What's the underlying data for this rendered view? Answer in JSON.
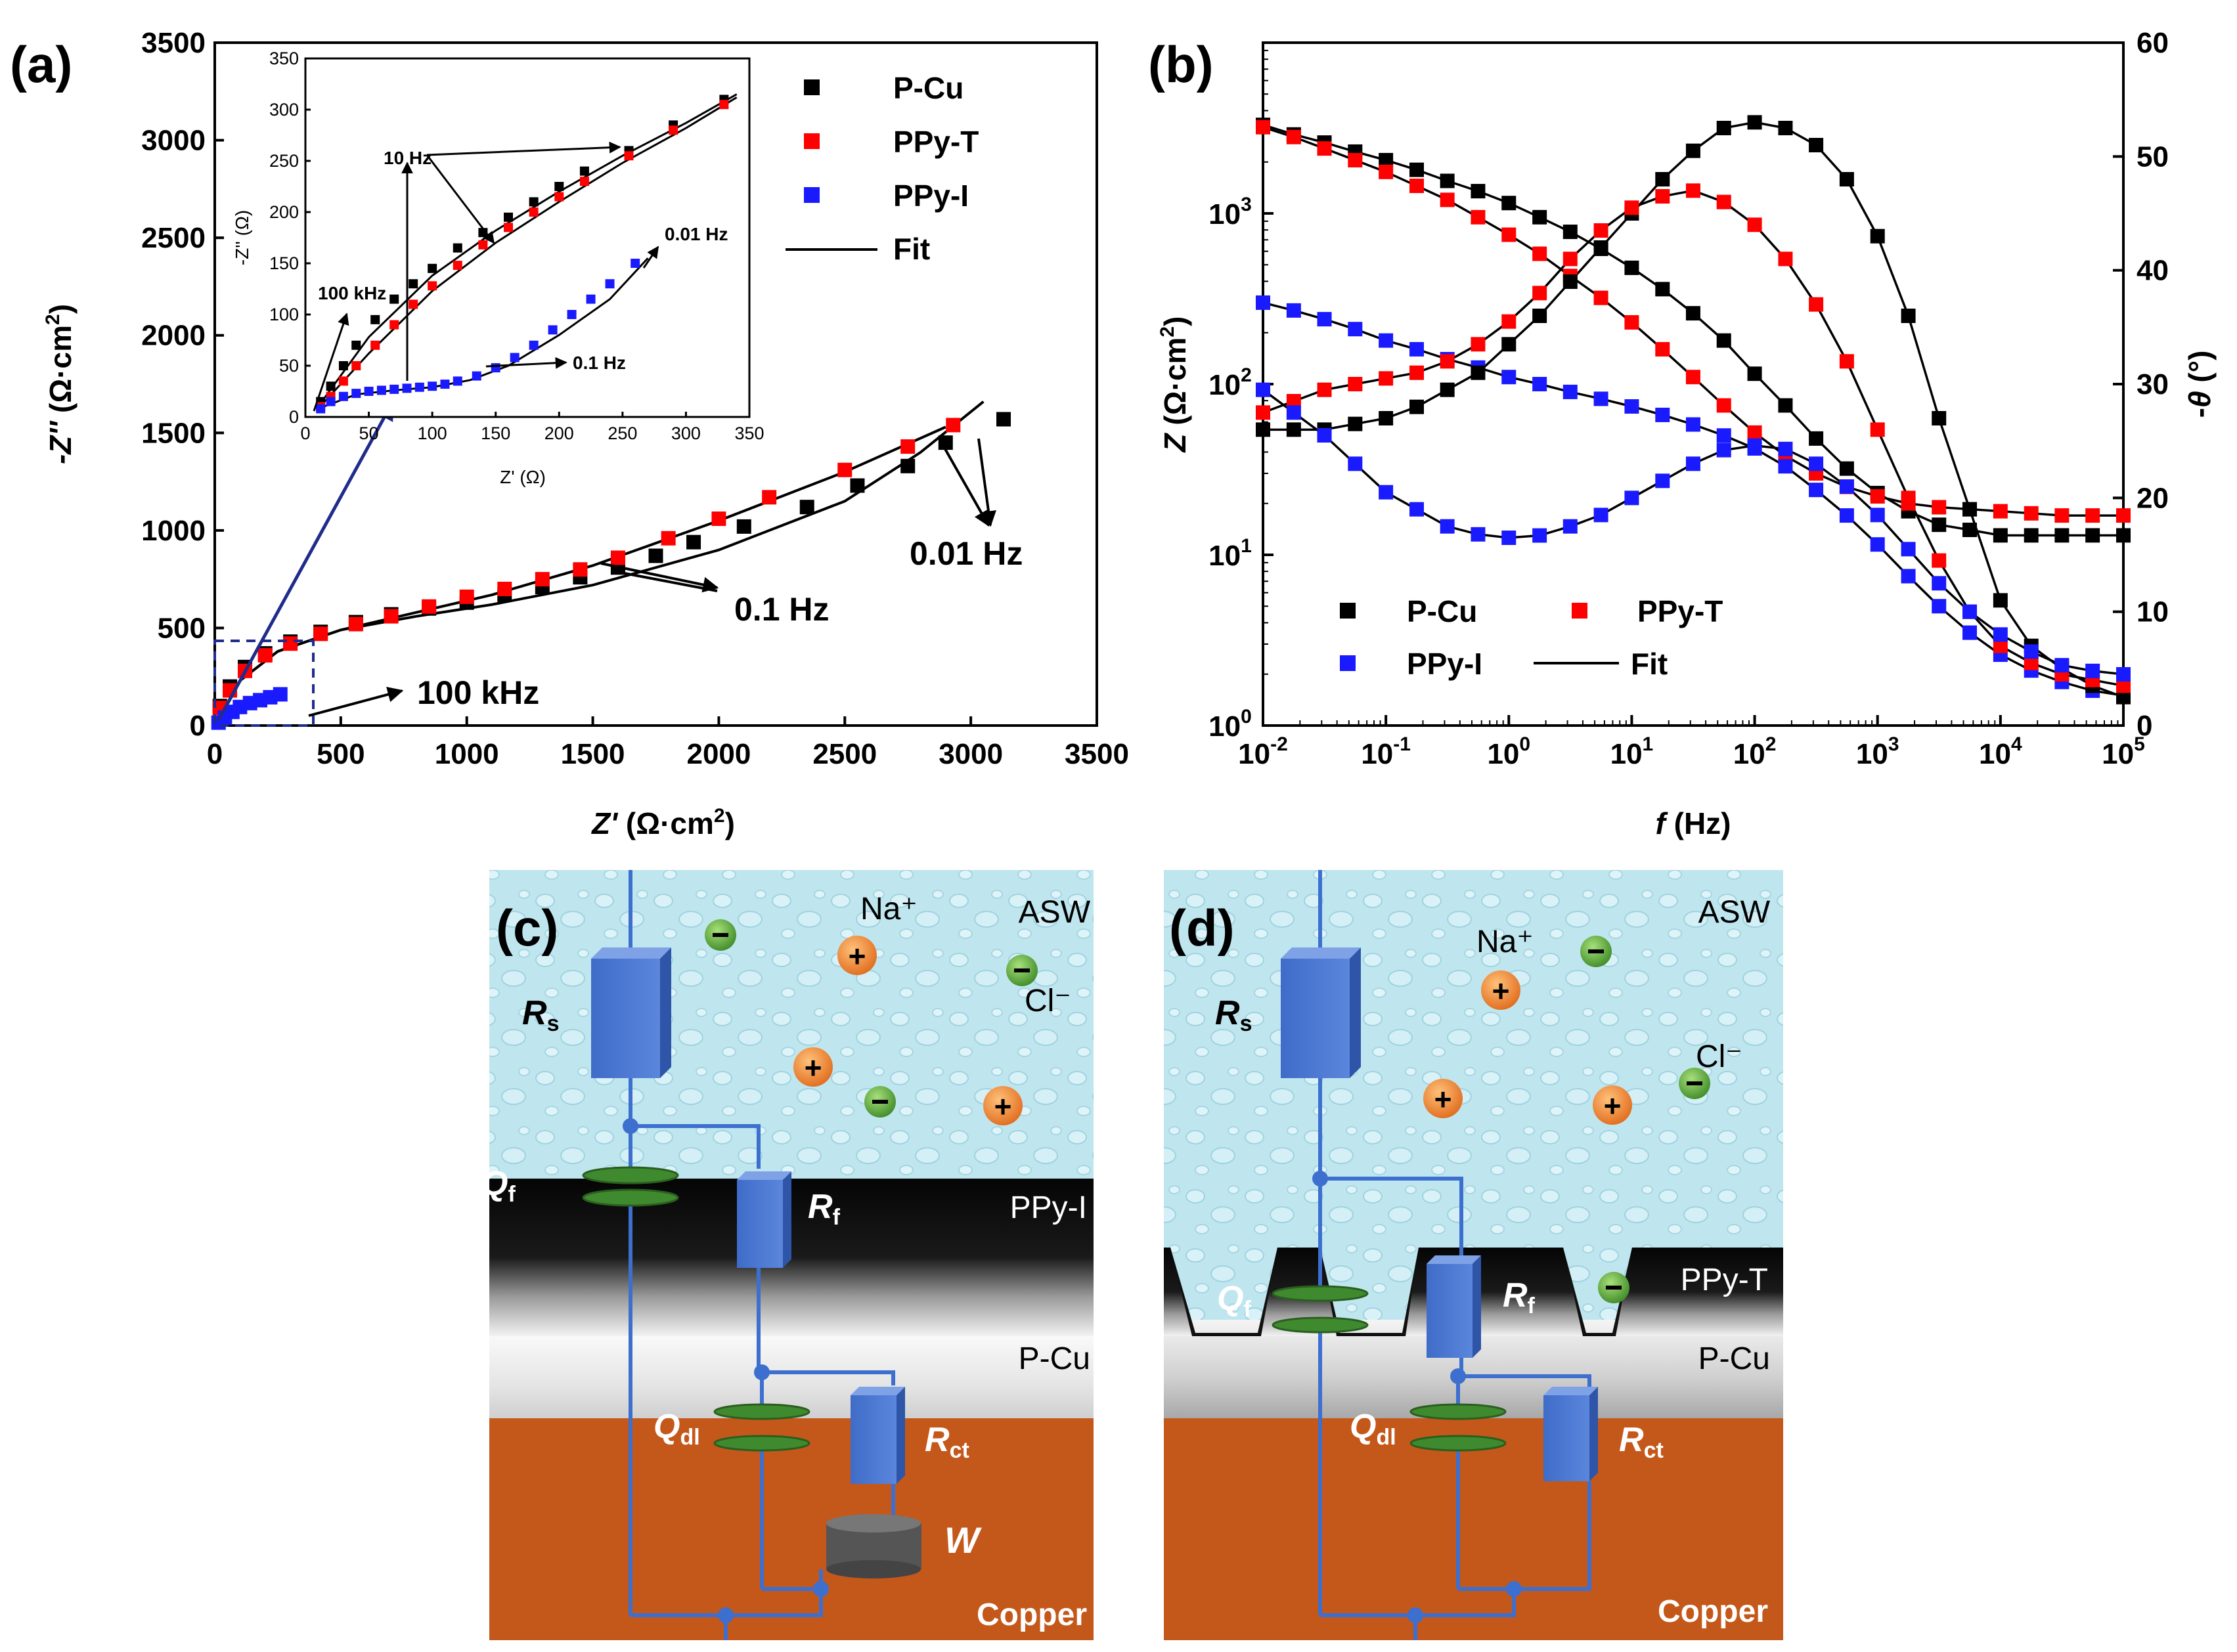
{
  "panel_labels": {
    "a": "(a)",
    "b": "(b)",
    "c": "(c)",
    "d": "(d)"
  },
  "colors": {
    "p_cu": "#000000",
    "ppy_t": "#ff0000",
    "ppy_i": "#1a1aff",
    "fit": "#000000",
    "water": "#bfe6ef",
    "film": "#0d0d0d",
    "copper": "#c4581a",
    "wire": "#3d6fcf",
    "box": "#4a78d4",
    "cap": "#3f8a2e",
    "cation": "#f08a3a",
    "anion": "#58a03a",
    "arrow": "#1f2c8c"
  },
  "chart_data": [
    {
      "id": "a",
      "type": "scatter",
      "title": "",
      "xlabel": "Z' (Ω·cm²)",
      "ylabel": "-Z'' (Ω·cm²)",
      "xlim": [
        0,
        3500
      ],
      "ylim": [
        0,
        3500
      ],
      "xticks": [
        0,
        500,
        1000,
        1500,
        2000,
        2500,
        3000,
        3500
      ],
      "yticks": [
        0,
        500,
        1000,
        1500,
        2000,
        2500,
        3000,
        3500
      ],
      "legend": [
        "P-Cu",
        "PPy-T",
        "PPy-I",
        "Fit"
      ],
      "legend_position": "top-right",
      "series": [
        {
          "name": "P-Cu",
          "x": [
            20,
            60,
            120,
            200,
            300,
            420,
            560,
            700,
            850,
            1000,
            1150,
            1300,
            1450,
            1600,
            1750,
            1900,
            2100,
            2350,
            2550,
            2750,
            2900,
            3130
          ],
          "y": [
            100,
            200,
            300,
            370,
            430,
            480,
            530,
            570,
            600,
            630,
            670,
            710,
            760,
            810,
            870,
            940,
            1020,
            1120,
            1230,
            1330,
            1450,
            1570
          ]
        },
        {
          "name": "PPy-T",
          "x": [
            20,
            60,
            120,
            200,
            300,
            420,
            560,
            700,
            850,
            1000,
            1150,
            1300,
            1450,
            1600,
            1800,
            2000,
            2200,
            2500,
            2750,
            2930
          ],
          "y": [
            90,
            180,
            280,
            360,
            420,
            470,
            520,
            560,
            610,
            660,
            700,
            750,
            800,
            860,
            960,
            1060,
            1170,
            1310,
            1430,
            1540
          ]
        },
        {
          "name": "PPy-I",
          "x": [
            15,
            40,
            70,
            100,
            140,
            180,
            220,
            260
          ],
          "y": [
            15,
            40,
            70,
            95,
            115,
            130,
            145,
            160
          ]
        }
      ],
      "fits": [
        {
          "name": "P-Cu fit",
          "x": [
            0,
            100,
            250,
            500,
            800,
            1100,
            1500,
            2000,
            2500,
            2800,
            3050
          ],
          "y": [
            0,
            230,
            380,
            490,
            560,
            620,
            720,
            900,
            1150,
            1400,
            1660
          ]
        },
        {
          "name": "PPy-T fit",
          "x": [
            0,
            100,
            250,
            500,
            800,
            1100,
            1500,
            2000,
            2500,
            2900
          ],
          "y": [
            0,
            230,
            380,
            490,
            580,
            670,
            820,
            1050,
            1300,
            1530
          ]
        },
        {
          "name": "PPy-I fit",
          "x": [
            0,
            50,
            100,
            150,
            200,
            260
          ],
          "y": [
            0,
            50,
            95,
            120,
            140,
            160
          ]
        }
      ],
      "annotations": [
        "100 kHz",
        "0.1 Hz",
        "0.01 Hz"
      ],
      "zoom_box": {
        "x": [
          0,
          400
        ],
        "y": [
          0,
          420
        ]
      },
      "inset": {
        "xlabel": "Z' (Ω)",
        "ylabel": "-Z'' (Ω)",
        "xlim": [
          0,
          350
        ],
        "ylim": [
          0,
          350
        ],
        "xticks": [
          0,
          50,
          100,
          150,
          200,
          250,
          300,
          350
        ],
        "yticks": [
          0,
          50,
          100,
          150,
          200,
          250,
          300,
          350
        ],
        "series": [
          {
            "name": "P-Cu",
            "x": [
              12,
              20,
              30,
              40,
              55,
              70,
              85,
              100,
              120,
              140,
              160,
              180,
              200,
              220,
              255,
              290,
              330
            ],
            "y": [
              15,
              30,
              50,
              70,
              95,
              115,
              130,
              145,
              165,
              180,
              195,
              210,
              225,
              240,
              260,
              285,
              310
            ]
          },
          {
            "name": "PPy-T",
            "x": [
              12,
              20,
              30,
              40,
              55,
              70,
              85,
              100,
              120,
              140,
              160,
              180,
              200,
              220,
              255,
              290,
              330
            ],
            "y": [
              10,
              20,
              35,
              50,
              70,
              90,
              110,
              128,
              148,
              168,
              185,
              200,
              215,
              230,
              255,
              280,
              305
            ]
          },
          {
            "name": "PPy-I",
            "x": [
              12,
              20,
              30,
              40,
              50,
              60,
              70,
              80,
              90,
              100,
              110,
              120,
              135,
              150,
              165,
              180,
              195,
              210,
              225,
              240,
              260
            ],
            "y": [
              8,
              15,
              20,
              23,
              25,
              26,
              27,
              28,
              29,
              30,
              32,
              35,
              40,
              48,
              58,
              70,
              85,
              100,
              115,
              130,
              150
            ]
          }
        ],
        "fits": [
          {
            "name": "P-Cu fit",
            "x": [
              10,
              50,
              100,
              150,
              200,
              250,
              300,
              340
            ],
            "y": [
              10,
              78,
              138,
              182,
              220,
              255,
              287,
              315
            ]
          },
          {
            "name": "PPy-T fit",
            "x": [
              10,
              50,
              100,
              150,
              200,
              250,
              300,
              340
            ],
            "y": [
              8,
              62,
              123,
              170,
              210,
              248,
              282,
              312
            ]
          },
          {
            "name": "PPy-I fit",
            "x": [
              10,
              40,
              70,
              100,
              130,
              160,
              200,
              240,
              270
            ],
            "y": [
              8,
              22,
              26,
              29,
              36,
              50,
              80,
              115,
              155
            ]
          }
        ],
        "annotations": [
          "10 Hz",
          "100 kHz",
          "0.01 Hz",
          "0.1 Hz"
        ]
      }
    },
    {
      "id": "b",
      "type": "scatter",
      "xlabel": "f (Hz)",
      "ylabel": "Z (Ω·cm²)",
      "ylabel_right": "-θ (°)",
      "x_scale": "log",
      "y_scale": "log",
      "xlim": [
        0.01,
        100000
      ],
      "ylim": [
        1,
        10000
      ],
      "y2lim": [
        0,
        60
      ],
      "xticks": [
        "10-2",
        "10-1",
        "100",
        "101",
        "102",
        "103",
        "104",
        "105"
      ],
      "yticks": [
        "100",
        "101",
        "102",
        "103"
      ],
      "y2ticks": [
        0,
        10,
        20,
        30,
        40,
        50,
        60
      ],
      "legend": [
        "P-Cu",
        "PPy-T",
        "PPy-I",
        "Fit"
      ],
      "legend_position": "bottom-left",
      "freq": [
        0.01,
        0.0178,
        0.0316,
        0.0562,
        0.1,
        0.178,
        0.316,
        0.562,
        1,
        1.78,
        3.16,
        5.62,
        10,
        17.8,
        31.6,
        56.2,
        100,
        178,
        316,
        562,
        1000,
        1780,
        3160,
        5620,
        10000,
        17800,
        31600,
        56200,
        100000
      ],
      "series": [
        {
          "name": "P-Cu |Z|",
          "axis": "left",
          "values": [
            3300,
            2900,
            2600,
            2300,
            2050,
            1800,
            1550,
            1350,
            1150,
            950,
            780,
            620,
            480,
            360,
            260,
            180,
            115,
            75,
            48,
            32,
            23,
            18,
            15,
            14,
            13,
            13,
            13,
            13,
            13
          ]
        },
        {
          "name": "PPy-T |Z|",
          "axis": "left",
          "values": [
            3200,
            2800,
            2400,
            2050,
            1750,
            1450,
            1200,
            950,
            750,
            580,
            430,
            320,
            230,
            160,
            110,
            75,
            52,
            38,
            30,
            25,
            22,
            20,
            19,
            18.5,
            18,
            17.5,
            17,
            17,
            17
          ]
        },
        {
          "name": "PPy-I |Z|",
          "axis": "left",
          "values": [
            300,
            270,
            240,
            210,
            180,
            160,
            140,
            125,
            110,
            100,
            90,
            82,
            74,
            66,
            58,
            50,
            42,
            33,
            24,
            17,
            11.5,
            7.5,
            5,
            3.5,
            2.6,
            2.1,
            1.8,
            1.6,
            1.5
          ]
        },
        {
          "name": "P-Cu -θ",
          "axis": "right",
          "values": [
            26,
            26,
            26,
            26.5,
            27,
            28,
            29.5,
            31,
            33.5,
            36,
            39,
            42,
            45,
            48,
            50.5,
            52.5,
            53,
            52.5,
            51,
            48,
            43,
            36,
            27,
            19,
            11,
            7,
            5,
            3.5,
            2.5
          ]
        },
        {
          "name": "PPy-T -θ",
          "axis": "right",
          "values": [
            27.5,
            28.5,
            29.5,
            30,
            30.5,
            31,
            32,
            33.5,
            35.5,
            38,
            41,
            43.5,
            45.5,
            46.5,
            47,
            46,
            44,
            41,
            37,
            32,
            26,
            20,
            14.5,
            10,
            7,
            5.5,
            4.5,
            4,
            3.5
          ]
        },
        {
          "name": "PPy-I -θ",
          "axis": "right",
          "values": [
            29.5,
            27.5,
            25.5,
            23,
            20.5,
            19,
            17.5,
            16.8,
            16.5,
            16.7,
            17.5,
            18.5,
            20,
            21.5,
            23,
            24.2,
            24.6,
            24.3,
            23,
            21,
            18.5,
            15.5,
            12.5,
            10,
            8,
            6.5,
            5.3,
            4.8,
            4.5
          ]
        }
      ]
    }
  ],
  "diagram_c": {
    "layers": [
      "ASW",
      "PPy-I",
      "P-Cu",
      "Copper"
    ],
    "ions": [
      "Na⁺",
      "Cl⁻"
    ],
    "elements": [
      "R",
      "s",
      "Q",
      "f",
      "R",
      "f",
      "Q",
      "dl",
      "R",
      "ct",
      "W"
    ]
  },
  "diagram_d": {
    "layers": [
      "ASW",
      "PPy-T",
      "P-Cu",
      "Copper"
    ],
    "ions": [
      "Na⁺",
      "Cl⁻"
    ],
    "elements": [
      "R",
      "s",
      "Q",
      "f",
      "R",
      "f",
      "Q",
      "dl",
      "R",
      "ct"
    ]
  }
}
